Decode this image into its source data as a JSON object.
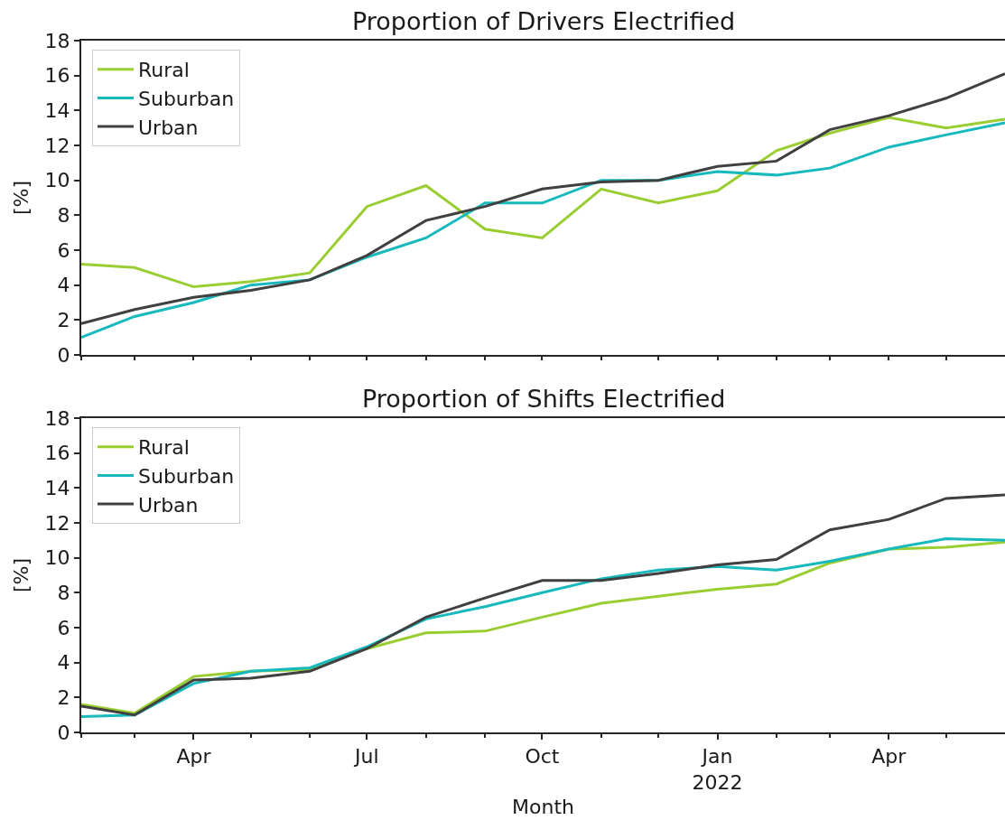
{
  "chart_data": [
    {
      "type": "line",
      "title": "Proportion of Drivers Electrified",
      "ylabel": "[%]",
      "x": [
        "2021-02",
        "2021-03",
        "2021-04",
        "2021-05",
        "2021-06",
        "2021-07",
        "2021-08",
        "2021-09",
        "2021-10",
        "2021-11",
        "2021-12",
        "2022-01",
        "2022-02",
        "2022-03",
        "2022-04",
        "2022-05",
        "2022-06"
      ],
      "xlim": [
        "2021-02",
        "2022-06"
      ],
      "xticks": [
        {
          "value": "2021-02",
          "label": null
        },
        {
          "value": "2021-03",
          "label": null
        },
        {
          "value": "2021-04",
          "label": null
        },
        {
          "value": "2021-05",
          "label": null
        },
        {
          "value": "2021-06",
          "label": null
        },
        {
          "value": "2021-07",
          "label": null
        },
        {
          "value": "2021-08",
          "label": null
        },
        {
          "value": "2021-09",
          "label": null
        },
        {
          "value": "2021-10",
          "label": null
        },
        {
          "value": "2021-11",
          "label": null
        },
        {
          "value": "2021-12",
          "label": null
        },
        {
          "value": "2022-01",
          "label": null
        },
        {
          "value": "2022-02",
          "label": null
        },
        {
          "value": "2022-03",
          "label": null
        },
        {
          "value": "2022-04",
          "label": null
        },
        {
          "value": "2022-05",
          "label": null
        }
      ],
      "ylim": [
        0,
        18
      ],
      "yticks": [
        0,
        2,
        4,
        6,
        8,
        10,
        12,
        14,
        16,
        18
      ],
      "tick_labels": "y",
      "legend": "top left",
      "series": [
        {
          "name": "Rural",
          "color": "#9acd32",
          "values": [
            5.2,
            5.0,
            3.9,
            4.2,
            4.7,
            8.5,
            9.7,
            7.2,
            6.7,
            9.5,
            8.7,
            9.4,
            11.7,
            12.7,
            13.6,
            13.0,
            13.5
          ]
        },
        {
          "name": "Suburban",
          "color": "#17b9bd",
          "values": [
            1.0,
            2.2,
            3.0,
            4.0,
            4.3,
            5.6,
            6.7,
            8.7,
            8.7,
            10.0,
            10.0,
            10.5,
            10.3,
            10.7,
            11.9,
            12.6,
            13.3
          ]
        },
        {
          "name": "Urban",
          "color": "#404040",
          "values": [
            1.8,
            2.6,
            3.3,
            3.7,
            4.3,
            5.7,
            7.7,
            8.5,
            9.5,
            9.9,
            10.0,
            10.8,
            11.1,
            12.9,
            13.7,
            14.7,
            16.1
          ]
        }
      ]
    },
    {
      "type": "line",
      "title": "Proportion of Shifts Electrified",
      "xlabel": "Month",
      "ylabel": "[%]",
      "x": [
        "2021-02",
        "2021-03",
        "2021-04",
        "2021-05",
        "2021-06",
        "2021-07",
        "2021-08",
        "2021-09",
        "2021-10",
        "2021-11",
        "2021-12",
        "2022-01",
        "2022-02",
        "2022-03",
        "2022-04",
        "2022-05",
        "2022-06"
      ],
      "xlim": [
        "2021-02",
        "2022-06"
      ],
      "xticks": [
        {
          "value": "2021-02",
          "label": null
        },
        {
          "value": "2021-03",
          "label": null
        },
        {
          "value": "2021-04",
          "label": "Apr"
        },
        {
          "value": "2021-05",
          "label": null
        },
        {
          "value": "2021-06",
          "label": null
        },
        {
          "value": "2021-07",
          "label": "Jul"
        },
        {
          "value": "2021-08",
          "label": null
        },
        {
          "value": "2021-09",
          "label": null
        },
        {
          "value": "2021-10",
          "label": "Oct"
        },
        {
          "value": "2021-11",
          "label": null
        },
        {
          "value": "2021-12",
          "label": null
        },
        {
          "value": "2022-01",
          "label": "Jan\n2022"
        },
        {
          "value": "2022-02",
          "label": null
        },
        {
          "value": "2022-03",
          "label": null
        },
        {
          "value": "2022-04",
          "label": "Apr"
        },
        {
          "value": "2022-05",
          "label": null
        }
      ],
      "ylim": [
        0,
        18
      ],
      "yticks": [
        0,
        2,
        4,
        6,
        8,
        10,
        12,
        14,
        16,
        18
      ],
      "legend": "top left",
      "series": [
        {
          "name": "Rural",
          "color": "#9acd32",
          "values": [
            1.6,
            1.1,
            3.2,
            3.5,
            3.6,
            4.8,
            5.7,
            5.8,
            6.6,
            7.4,
            7.8,
            8.2,
            8.5,
            9.7,
            10.5,
            10.6,
            10.9
          ]
        },
        {
          "name": "Suburban",
          "color": "#17b9bd",
          "values": [
            0.9,
            1.0,
            2.8,
            3.5,
            3.7,
            4.9,
            6.5,
            7.2,
            8.0,
            8.8,
            9.3,
            9.5,
            9.3,
            9.8,
            10.5,
            11.1,
            11.0
          ]
        },
        {
          "name": "Urban",
          "color": "#404040",
          "values": [
            1.5,
            1.0,
            3.0,
            3.1,
            3.5,
            4.8,
            6.6,
            7.7,
            8.7,
            8.7,
            9.1,
            9.6,
            9.9,
            11.6,
            12.2,
            13.4,
            13.6
          ]
        }
      ]
    }
  ]
}
